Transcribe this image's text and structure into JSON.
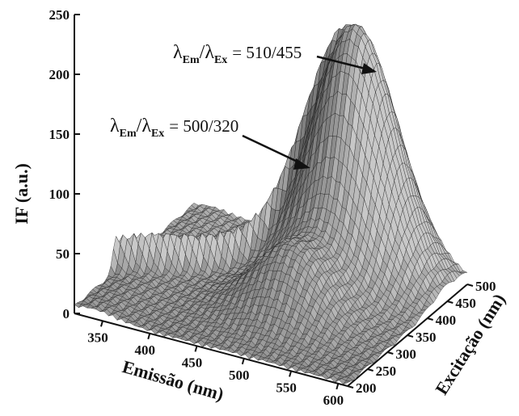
{
  "chart_data": {
    "type": "surface",
    "zlabel": "IF (a.u.)",
    "xlabel": "Emissão (nm)",
    "ylabel": "Excitação (nm)",
    "z_ticks": [
      "0",
      "50",
      "100",
      "150",
      "200",
      "250"
    ],
    "x_ticks": [
      "350",
      "400",
      "450",
      "500",
      "550",
      "600"
    ],
    "y_ticks": [
      "200",
      "250",
      "300",
      "350",
      "400",
      "450",
      "500"
    ],
    "zlim": [
      0,
      250
    ],
    "xlim": [
      320,
      610
    ],
    "ylim": [
      200,
      500
    ],
    "peaks": [
      {
        "emission": 510,
        "excitation": 455,
        "intensity": 207
      },
      {
        "emission": 500,
        "excitation": 320,
        "intensity": 105
      }
    ],
    "annotations": [
      {
        "lambda": "λ",
        "sub_em": "Em",
        "slash": "/",
        "sub_ex": "Ex",
        "value": "= 510/455",
        "target": "peak-510-455"
      },
      {
        "lambda": "λ",
        "sub_em": "Em",
        "slash": "/",
        "sub_ex": "Ex",
        "value": "= 500/320",
        "target": "peak-500-320"
      }
    ],
    "colors": {
      "mesh": "#1a1a1a",
      "surface": "#8a8a8a",
      "background": "#ffffff"
    }
  }
}
